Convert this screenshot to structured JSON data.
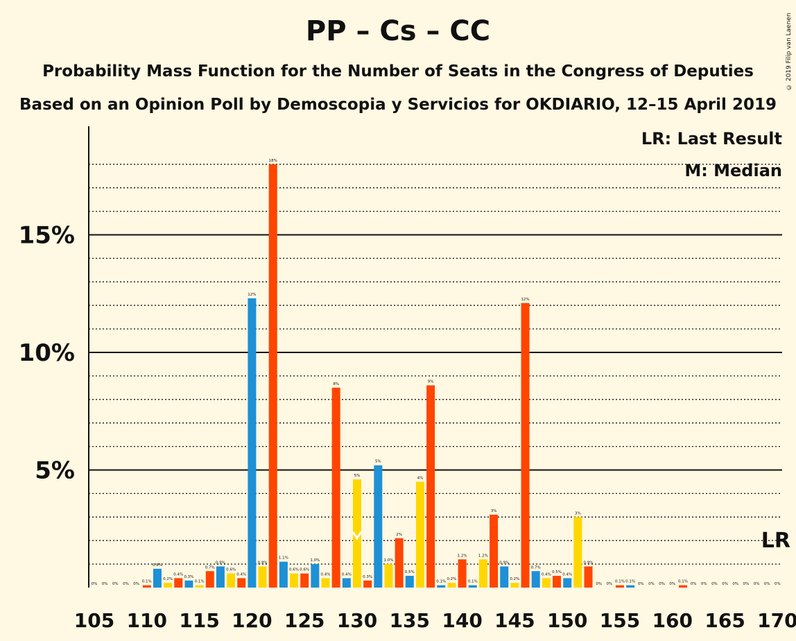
{
  "title": "PP – Cs – CC",
  "subtitle1": "Probability Mass Function for the Number of Seats in the Congress of Deputies",
  "subtitle2": "Based on an Opinion Poll by Demoscopia y Servicios for OKDIARIO, 12–15 April 2019",
  "copyright": "© 2019 Filip van Laenen",
  "legend": {
    "lr": "LR: Last Result",
    "median": "M: Median"
  },
  "colors": {
    "pp": "#1E90D6",
    "cs": "#FFD700",
    "cc": "#FF4500",
    "background": "#FFF8E2"
  },
  "chart_data": {
    "type": "bar",
    "x": [
      105,
      106,
      107,
      108,
      109,
      110,
      111,
      112,
      113,
      114,
      115,
      116,
      117,
      118,
      119,
      120,
      121,
      122,
      123,
      124,
      125,
      126,
      127,
      128,
      129,
      130,
      131,
      132,
      133,
      134,
      135,
      136,
      137,
      138,
      139,
      140,
      141,
      142,
      143,
      144,
      145,
      146,
      147,
      148,
      149,
      150,
      151,
      152,
      153,
      154,
      155,
      156,
      157,
      158,
      159,
      160,
      161,
      162,
      163,
      164,
      165,
      166,
      167,
      168,
      169,
      170
    ],
    "values": [
      0,
      0,
      0,
      0,
      0,
      0.1,
      0.8,
      0.2,
      0.4,
      0.3,
      0.1,
      0.7,
      0.9,
      0.6,
      0.4,
      12.3,
      0.9,
      18,
      1.1,
      0.6,
      0.6,
      1.0,
      0.4,
      8.5,
      0.4,
      4.6,
      0.3,
      5.2,
      1.0,
      2.1,
      0.5,
      4.5,
      8.6,
      0.1,
      0.2,
      1.2,
      0.1,
      1.2,
      3.1,
      0.9,
      0.2,
      12.1,
      0.7,
      0.4,
      0.5,
      0.4,
      3.0,
      0.9,
      0,
      0,
      0.1,
      0.1,
      0,
      0,
      0,
      0,
      0.1,
      0,
      0,
      0,
      0,
      0,
      0,
      0,
      0,
      0
    ],
    "labels": [
      "0%",
      "0%",
      "0%",
      "0%",
      "0%",
      "0.1%",
      "0.8%",
      "0.2%",
      "0.4%",
      "0.3%",
      "0.1%",
      "0.7%",
      "0.9%",
      "0.6%",
      "0.4%",
      "12%",
      "0.9%",
      "18%",
      "1.1%",
      "0.6%",
      "0.6%",
      "1.0%",
      "0.4%",
      "8%",
      "0.4%",
      "5%",
      "0.3%",
      "5%",
      "1.0%",
      "2%",
      "0.5%",
      "4%",
      "9%",
      "0.1%",
      "0.2%",
      "1.2%",
      "0.1%",
      "1.2%",
      "3%",
      "0.9%",
      "0.2%",
      "12%",
      "0.7%",
      "0.4%",
      "0.5%",
      "0.4%",
      "3%",
      "0.9%",
      "0%",
      "0%",
      "0.1%",
      "0.1%",
      "0%",
      "0%",
      "0%",
      "0%",
      "0.1%",
      "0%",
      "0%",
      "0%",
      "0%",
      "0%",
      "0%",
      "0%",
      "0%",
      "0%"
    ],
    "bar_colors": [
      "#1E90D6",
      "#FFD700",
      "#FF4500"
    ],
    "xticks": [
      105,
      110,
      115,
      120,
      125,
      130,
      135,
      140,
      145,
      150,
      155,
      160,
      165,
      170
    ],
    "yticks": [
      {
        "value": 5,
        "label": "5%"
      },
      {
        "value": 10,
        "label": "10%"
      },
      {
        "value": 15,
        "label": "15%"
      }
    ],
    "ylim": [
      0,
      19.5
    ],
    "grid_minor_step": 1,
    "median_seat": 130,
    "last_result_seat": 170,
    "last_result_label": "LR",
    "last_result_level": 2.0
  }
}
